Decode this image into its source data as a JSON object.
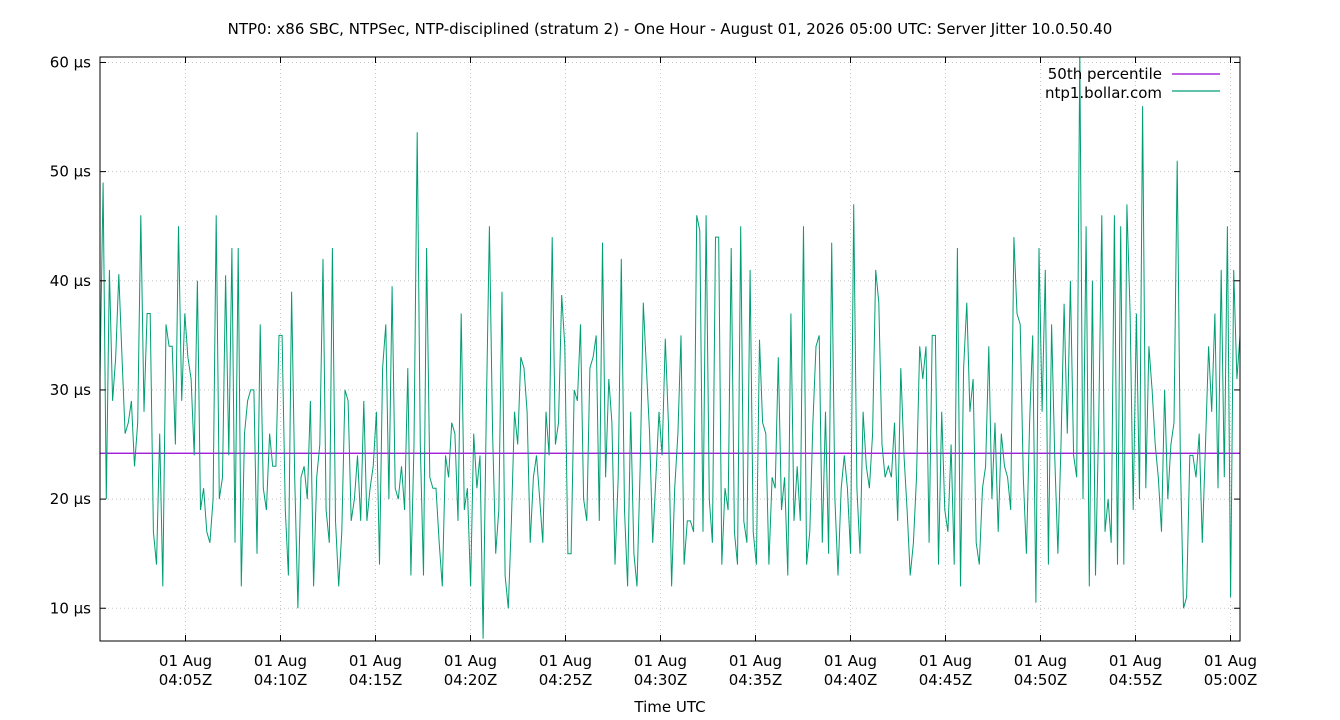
{
  "chart_data": {
    "type": "line",
    "title": "NTP0: x86 SBC, NTPSec, NTP-disciplined (stratum 2) - One Hour - August 01, 2026 05:00 UTC: Server Jitter 10.0.50.40",
    "xlabel": "Time UTC",
    "ylabel": "",
    "ylim": [
      7,
      60.5
    ],
    "xlim": [
      "2026-08-01T04:00:30Z",
      "2026-08-01T05:00:30Z"
    ],
    "grid": true,
    "legend_position": "top-right",
    "y_ticks": [
      {
        "value": 10,
        "label": "10 µs"
      },
      {
        "value": 20,
        "label": "20 µs"
      },
      {
        "value": 30,
        "label": "30 µs"
      },
      {
        "value": 40,
        "label": "40 µs"
      },
      {
        "value": 50,
        "label": "50 µs"
      },
      {
        "value": 60,
        "label": "60 µs"
      }
    ],
    "x_ticks": [
      {
        "value": "2026-08-01T04:05:00Z",
        "line1": "01 Aug",
        "line2": "04:05Z"
      },
      {
        "value": "2026-08-01T04:10:00Z",
        "line1": "01 Aug",
        "line2": "04:10Z"
      },
      {
        "value": "2026-08-01T04:15:00Z",
        "line1": "01 Aug",
        "line2": "04:15Z"
      },
      {
        "value": "2026-08-01T04:20:00Z",
        "line1": "01 Aug",
        "line2": "04:20Z"
      },
      {
        "value": "2026-08-01T04:25:00Z",
        "line1": "01 Aug",
        "line2": "04:25Z"
      },
      {
        "value": "2026-08-01T04:30:00Z",
        "line1": "01 Aug",
        "line2": "04:30Z"
      },
      {
        "value": "2026-08-01T04:35:00Z",
        "line1": "01 Aug",
        "line2": "04:35Z"
      },
      {
        "value": "2026-08-01T04:40:00Z",
        "line1": "01 Aug",
        "line2": "04:40Z"
      },
      {
        "value": "2026-08-01T04:45:00Z",
        "line1": "01 Aug",
        "line2": "04:45Z"
      },
      {
        "value": "2026-08-01T04:50:00Z",
        "line1": "01 Aug",
        "line2": "04:50Z"
      },
      {
        "value": "2026-08-01T04:55:00Z",
        "line1": "01 Aug",
        "line2": "04:55Z"
      },
      {
        "value": "2026-08-01T05:00:00Z",
        "line1": "01 Aug",
        "line2": "05:00Z"
      }
    ],
    "series": [
      {
        "name": "50th percentile",
        "color": "#9400d3",
        "values": [
          24.2
        ]
      },
      {
        "name": "ntp1.bollar.com",
        "color": "#009e73",
        "x_start": "2026-08-01T04:00:30Z",
        "x_end": "2026-08-01T05:00:30Z",
        "values": [
          31,
          49,
          20,
          41,
          29,
          33,
          40.6,
          33,
          26,
          27,
          29,
          23,
          27,
          46,
          28,
          37,
          37,
          17,
          14,
          26,
          12,
          36,
          34,
          34,
          25,
          45,
          29,
          37,
          33,
          31,
          24,
          40,
          19,
          21,
          17,
          16,
          20,
          46,
          20,
          22,
          40.5,
          24,
          43,
          16,
          43,
          12,
          26,
          29,
          30,
          30,
          15,
          36,
          21,
          19,
          26,
          23,
          23,
          35,
          35,
          19,
          13,
          39,
          22,
          10,
          22,
          23,
          20,
          29,
          12,
          22,
          25,
          42,
          19,
          16,
          43,
          18,
          12,
          17,
          30,
          29,
          18,
          20,
          24,
          18,
          29,
          18,
          21,
          23,
          28,
          14,
          32,
          36,
          20,
          39.5,
          21,
          20,
          23,
          19,
          32,
          13,
          25,
          53.6,
          25,
          13,
          43,
          22,
          21,
          21,
          16,
          12,
          24,
          22,
          27,
          26,
          18,
          37,
          19,
          21,
          12,
          26,
          21,
          24,
          7.2,
          28,
          45,
          26,
          15,
          19,
          39,
          13,
          10,
          18,
          28,
          25,
          33,
          32,
          28,
          16,
          22,
          24,
          20,
          16,
          28,
          24,
          44,
          25,
          27,
          38.7,
          34,
          15,
          15,
          30,
          29,
          36,
          20,
          18,
          32,
          33,
          35,
          18,
          43.5,
          22,
          31,
          27,
          14,
          22,
          42,
          19,
          12,
          28,
          15,
          12,
          23,
          38,
          32,
          26,
          16,
          22,
          28,
          24,
          34.7,
          27,
          12,
          21,
          26,
          35,
          14,
          18,
          18,
          17,
          46,
          44.6,
          17,
          46,
          20,
          16,
          44,
          44,
          14,
          21,
          19,
          43,
          17,
          14,
          45,
          18,
          16,
          41,
          17,
          14,
          34.6,
          27,
          26,
          14,
          22,
          21,
          33,
          19,
          22,
          13,
          37,
          18,
          23,
          18,
          45,
          14,
          17,
          27,
          34,
          35,
          16,
          28,
          15,
          43.5,
          20,
          13,
          21,
          24,
          21,
          15,
          47,
          21,
          15,
          28,
          23,
          21,
          26,
          41,
          38,
          25,
          22,
          23,
          22,
          27,
          18,
          32,
          24,
          19,
          13,
          16,
          22,
          34,
          31,
          34,
          16,
          35,
          35,
          14,
          28,
          19,
          17,
          25,
          14,
          43,
          12,
          32,
          38,
          28,
          31,
          16,
          14,
          21,
          23,
          34,
          20,
          27,
          17,
          26,
          23,
          22,
          19,
          44,
          37,
          36,
          22,
          15,
          27,
          35,
          10.5,
          43,
          28,
          41,
          14,
          36,
          24,
          15,
          25,
          37.9,
          26,
          40,
          24,
          22,
          61,
          20,
          45,
          12,
          40,
          13,
          27,
          46,
          17,
          20,
          16,
          46,
          14,
          45,
          14,
          47,
          37,
          19,
          37,
          20,
          56,
          21,
          34,
          30,
          25,
          22,
          17,
          30,
          20,
          25,
          27,
          51,
          24,
          10,
          11,
          24,
          24,
          22,
          26,
          16,
          25,
          34,
          28,
          37,
          21,
          41,
          22,
          45,
          11,
          41,
          31,
          35
        ]
      }
    ]
  }
}
